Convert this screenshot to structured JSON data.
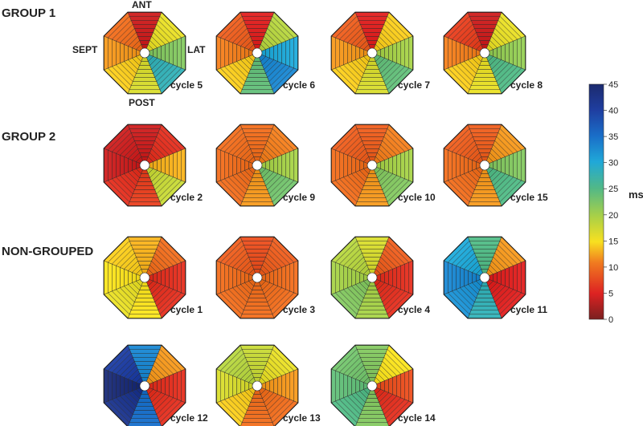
{
  "groups": [
    {
      "label": "GROUP 1"
    },
    {
      "label": "GROUP 2"
    },
    {
      "label": "NON-GROUPED"
    }
  ],
  "orientation": {
    "ant": "ANT",
    "sept": "SEPT",
    "lat": "LAT",
    "post": "POST"
  },
  "colorbar": {
    "unit": "ms",
    "ticks": [
      "45",
      "40",
      "35",
      "30",
      "25",
      "20",
      "15",
      "10",
      "5",
      "0"
    ],
    "min": 0,
    "max": 45
  },
  "chart_data": {
    "type": "heatmap",
    "value_range": [
      0,
      45
    ],
    "sectors_order": [
      "ANT",
      "ANT-LAT",
      "LAT",
      "POST-LAT",
      "POST",
      "POST-SEPT",
      "SEPT",
      "ANT-SEPT"
    ],
    "maps": [
      {
        "label": "cycle 5",
        "group": "GROUP 1",
        "sector_values": [
          4,
          16,
          22,
          28,
          17,
          14,
          12,
          10
        ]
      },
      {
        "label": "cycle 6",
        "group": "GROUP 1",
        "sector_values": [
          5,
          19,
          30,
          33,
          24,
          14,
          11,
          9
        ]
      },
      {
        "label": "cycle 7",
        "group": "GROUP 1",
        "sector_values": [
          5,
          14,
          20,
          24,
          17,
          14,
          12,
          9
        ]
      },
      {
        "label": "cycle 8",
        "group": "GROUP 1",
        "sector_values": [
          4,
          16,
          21,
          25,
          16,
          14,
          11,
          7
        ]
      },
      {
        "label": "cycle 2",
        "group": "GROUP 2",
        "sector_values": [
          4,
          6,
          13,
          18,
          7,
          6,
          4,
          4
        ]
      },
      {
        "label": "cycle 9",
        "group": "GROUP 2",
        "sector_values": [
          10,
          11,
          20,
          23,
          12,
          10,
          10,
          10
        ]
      },
      {
        "label": "cycle 10",
        "group": "GROUP 2",
        "sector_values": [
          9,
          11,
          20,
          22,
          12,
          10,
          10,
          9
        ]
      },
      {
        "label": "cycle 15",
        "group": "GROUP 2",
        "sector_values": [
          9,
          12,
          22,
          25,
          12,
          10,
          10,
          9
        ]
      },
      {
        "label": "cycle 1",
        "group": "NON-GROUPED",
        "sector_values": [
          13,
          10,
          6,
          6,
          15,
          16,
          15,
          14
        ]
      },
      {
        "label": "cycle 3",
        "group": "NON-GROUPED",
        "sector_values": [
          8,
          9,
          10,
          10,
          10,
          10,
          10,
          9
        ]
      },
      {
        "label": "cycle 4",
        "group": "NON-GROUPED",
        "sector_values": [
          17,
          9,
          6,
          6,
          20,
          22,
          20,
          19
        ]
      },
      {
        "label": "cycle 11",
        "group": "NON-GROUPED",
        "sector_values": [
          25,
          12,
          5,
          5,
          28,
          32,
          33,
          30
        ]
      },
      {
        "label": "cycle 12",
        "group": "NON-GROUPED",
        "sector_values": [
          33,
          12,
          6,
          6,
          35,
          42,
          44,
          40
        ]
      },
      {
        "label": "cycle 13",
        "group": "NON-GROUPED",
        "sector_values": [
          18,
          16,
          12,
          10,
          10,
          14,
          17,
          19
        ]
      },
      {
        "label": "cycle 14",
        "group": "NON-GROUPED",
        "sector_values": [
          22,
          15,
          8,
          6,
          22,
          25,
          24,
          23
        ]
      }
    ]
  }
}
